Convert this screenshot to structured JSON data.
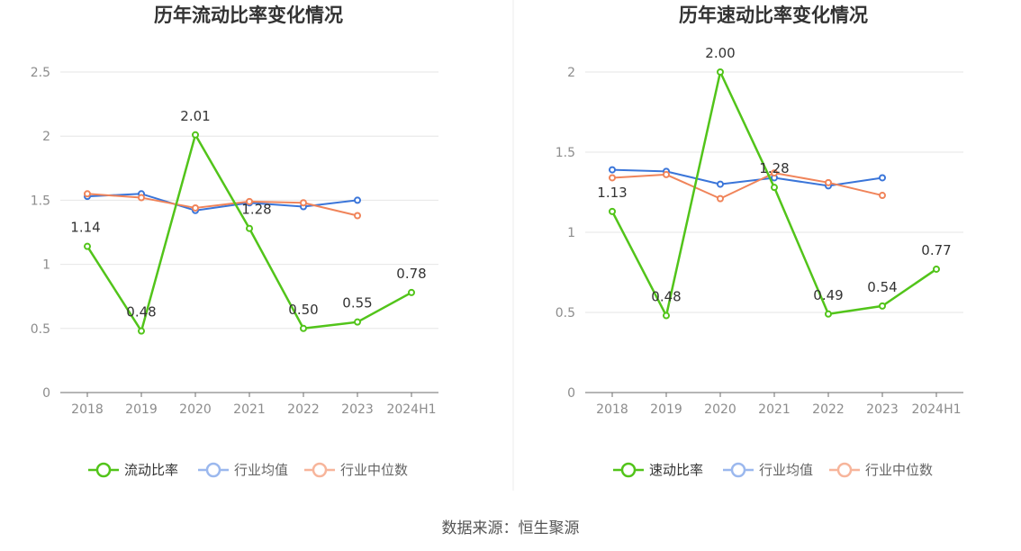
{
  "source_label": "数据来源：恒生聚源",
  "chart_data": [
    {
      "type": "line",
      "title": "历年流动比率变化情况",
      "categories": [
        "2018",
        "2019",
        "2020",
        "2021",
        "2022",
        "2023",
        "2024H1"
      ],
      "ylim": [
        0,
        2.5
      ],
      "yticks": [
        0,
        0.5,
        1,
        1.5,
        2,
        2.5
      ],
      "ytick_labels": [
        "0",
        "0.5",
        "1",
        "1.5",
        "2",
        "2.5"
      ],
      "grid": true,
      "legend_position": "bottom-center",
      "series": [
        {
          "name": "流动比率",
          "color": "#52c41a",
          "values": [
            1.14,
            0.48,
            2.01,
            1.28,
            0.5,
            0.55,
            0.78
          ],
          "labels": [
            "1.14",
            "0.48",
            "2.01",
            "1.28",
            "0.50",
            "0.55",
            "0.78"
          ]
        },
        {
          "name": "行业均值",
          "color": "#3a75d9",
          "values": [
            1.53,
            1.55,
            1.42,
            1.48,
            1.45,
            1.5,
            null
          ]
        },
        {
          "name": "行业中位数",
          "color": "#f0845a",
          "values": [
            1.55,
            1.52,
            1.44,
            1.49,
            1.48,
            1.38,
            null
          ]
        }
      ]
    },
    {
      "type": "line",
      "title": "历年速动比率变化情况",
      "categories": [
        "2018",
        "2019",
        "2020",
        "2021",
        "2022",
        "2023",
        "2024H1"
      ],
      "ylim": [
        0,
        2
      ],
      "yticks": [
        0,
        0.5,
        1,
        1.5,
        2
      ],
      "ytick_labels": [
        "0",
        "0.5",
        "1",
        "1.5",
        "2"
      ],
      "grid": true,
      "legend_position": "bottom-center",
      "series": [
        {
          "name": "速动比率",
          "color": "#52c41a",
          "values": [
            1.13,
            0.48,
            2.0,
            1.28,
            0.49,
            0.54,
            0.77
          ],
          "labels": [
            "1.13",
            "0.48",
            "2.00",
            "1.28",
            "0.49",
            "0.54",
            "0.77"
          ]
        },
        {
          "name": "行业均值",
          "color": "#3a75d9",
          "values": [
            1.39,
            1.38,
            1.3,
            1.34,
            1.29,
            1.34,
            null
          ]
        },
        {
          "name": "行业中位数",
          "color": "#f0845a",
          "values": [
            1.34,
            1.36,
            1.21,
            1.37,
            1.31,
            1.23,
            null
          ]
        }
      ]
    }
  ]
}
